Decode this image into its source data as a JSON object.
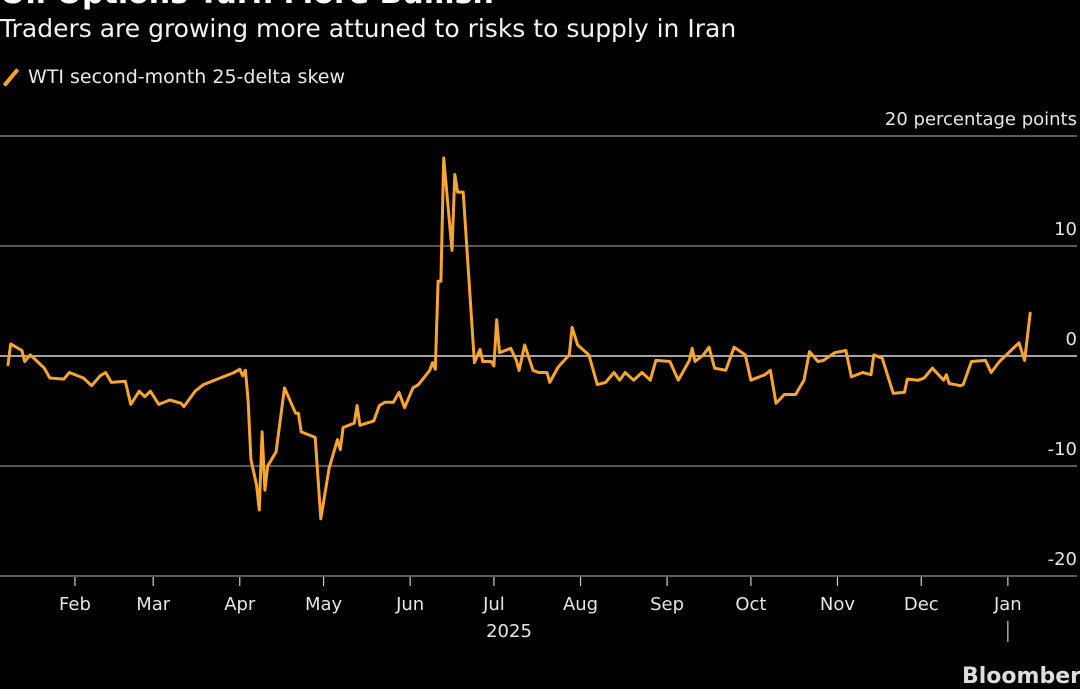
{
  "header": {
    "title": "Oil Options Turn More Bullish",
    "subtitle": "Traders are growing more attuned to risks to supply in Iran"
  },
  "source": "Bloomberg",
  "colors": {
    "series": "#f7a532",
    "background": "#000000",
    "grid": "#8c8c8c",
    "zero_line": "#d9d9d9"
  },
  "chart_data": {
    "type": "line",
    "title": "Oil Options Turn More Bullish",
    "subtitle": "Traders are growing more attuned to risks to supply in Iran",
    "legend_position": "top-left",
    "grid": true,
    "yaxis": {
      "unit_label": "20 percentage points",
      "ticks": [
        20,
        10,
        0,
        -10,
        -20
      ],
      "tick_labels": [
        "20 percentage points",
        "10",
        "0",
        "-10",
        "-20"
      ],
      "ylim": [
        -20,
        20
      ],
      "position": "right"
    },
    "xaxis": {
      "ticks": [
        "2025-02-01",
        "2025-03-01",
        "2025-04-01",
        "2025-05-01",
        "2025-06-01",
        "2025-07-01",
        "2025-08-01",
        "2025-09-01",
        "2025-10-01",
        "2025-11-01",
        "2025-12-01",
        "2026-01-01"
      ],
      "tick_labels": [
        "Feb",
        "Mar",
        "Apr",
        "May",
        "Jun",
        "Jul",
        "Aug",
        "Sep",
        "Oct",
        "Nov",
        "Dec",
        "Jan"
      ],
      "year_label": "2025"
    },
    "series": [
      {
        "name": "WTI second-month 25-delta skew",
        "points": [
          [
            "2025-01-08",
            -0.8
          ],
          [
            "2025-01-09",
            1.1
          ],
          [
            "2025-01-13",
            0.5
          ],
          [
            "2025-01-14",
            -0.5
          ],
          [
            "2025-01-16",
            0.1
          ],
          [
            "2025-01-21",
            -1.1
          ],
          [
            "2025-01-23",
            -2.0
          ],
          [
            "2025-01-28",
            -2.1
          ],
          [
            "2025-01-30",
            -1.5
          ],
          [
            "2025-02-04",
            -2.0
          ],
          [
            "2025-02-07",
            -2.7
          ],
          [
            "2025-02-10",
            -1.8
          ],
          [
            "2025-02-12",
            -1.5
          ],
          [
            "2025-02-14",
            -2.4
          ],
          [
            "2025-02-19",
            -2.3
          ],
          [
            "2025-02-21",
            -4.4
          ],
          [
            "2025-02-24",
            -3.2
          ],
          [
            "2025-02-26",
            -3.7
          ],
          [
            "2025-02-28",
            -3.2
          ],
          [
            "2025-03-03",
            -4.4
          ],
          [
            "2025-03-07",
            -4.0
          ],
          [
            "2025-03-11",
            -4.3
          ],
          [
            "2025-03-12",
            -4.6
          ],
          [
            "2025-03-16",
            -3.2
          ],
          [
            "2025-03-19",
            -2.6
          ],
          [
            "2025-03-25",
            -2.0
          ],
          [
            "2025-03-30",
            -1.5
          ],
          [
            "2025-04-01",
            -1.2
          ],
          [
            "2025-04-02",
            -1.8
          ],
          [
            "2025-04-03",
            -1.3
          ],
          [
            "2025-04-04",
            -4.0
          ],
          [
            "2025-04-05",
            -9.4
          ],
          [
            "2025-04-07",
            -11.7
          ],
          [
            "2025-04-08",
            -14.0
          ],
          [
            "2025-04-09",
            -6.9
          ],
          [
            "2025-04-10",
            -12.2
          ],
          [
            "2025-04-11",
            -10.0
          ],
          [
            "2025-04-14",
            -8.7
          ],
          [
            "2025-04-17",
            -2.9
          ],
          [
            "2025-04-21",
            -5.2
          ],
          [
            "2025-04-22",
            -5.2
          ],
          [
            "2025-04-23",
            -6.9
          ],
          [
            "2025-04-28",
            -7.4
          ],
          [
            "2025-04-30",
            -14.8
          ],
          [
            "2025-05-03",
            -10.2
          ],
          [
            "2025-05-06",
            -7.6
          ],
          [
            "2025-05-07",
            -8.5
          ],
          [
            "2025-05-08",
            -6.5
          ],
          [
            "2025-05-12",
            -6.1
          ],
          [
            "2025-05-13",
            -4.5
          ],
          [
            "2025-05-14",
            -6.3
          ],
          [
            "2025-05-19",
            -5.9
          ],
          [
            "2025-05-21",
            -4.5
          ],
          [
            "2025-05-23",
            -4.2
          ],
          [
            "2025-05-26",
            -4.2
          ],
          [
            "2025-05-28",
            -3.3
          ],
          [
            "2025-05-30",
            -4.7
          ],
          [
            "2025-06-02",
            -2.9
          ],
          [
            "2025-06-04",
            -2.6
          ],
          [
            "2025-06-08",
            -1.3
          ],
          [
            "2025-06-09",
            -0.6
          ],
          [
            "2025-06-10",
            -1.2
          ],
          [
            "2025-06-11",
            6.8
          ],
          [
            "2025-06-12",
            6.8
          ],
          [
            "2025-06-13",
            18.0
          ],
          [
            "2025-06-16",
            9.6
          ],
          [
            "2025-06-17",
            16.5
          ],
          [
            "2025-06-18",
            14.9
          ],
          [
            "2025-06-20",
            14.9
          ],
          [
            "2025-06-24",
            -0.6
          ],
          [
            "2025-06-26",
            0.6
          ],
          [
            "2025-06-27",
            -0.5
          ],
          [
            "2025-06-30",
            -0.5
          ],
          [
            "2025-07-01",
            -0.9
          ],
          [
            "2025-07-02",
            3.3
          ],
          [
            "2025-07-03",
            0.3
          ],
          [
            "2025-07-07",
            0.7
          ],
          [
            "2025-07-09",
            -0.4
          ],
          [
            "2025-07-10",
            -1.3
          ],
          [
            "2025-07-12",
            1.0
          ],
          [
            "2025-07-15",
            -1.3
          ],
          [
            "2025-07-17",
            -1.5
          ],
          [
            "2025-07-20",
            -1.5
          ],
          [
            "2025-07-21",
            -2.4
          ],
          [
            "2025-07-24",
            -1.0
          ],
          [
            "2025-07-28",
            0.1
          ],
          [
            "2025-07-29",
            2.6
          ],
          [
            "2025-07-31",
            1.0
          ],
          [
            "2025-08-04",
            0.1
          ],
          [
            "2025-08-07",
            -2.6
          ],
          [
            "2025-08-10",
            -2.4
          ],
          [
            "2025-08-13",
            -1.5
          ],
          [
            "2025-08-15",
            -2.2
          ],
          [
            "2025-08-17",
            -1.5
          ],
          [
            "2025-08-20",
            -2.2
          ],
          [
            "2025-08-23",
            -1.5
          ],
          [
            "2025-08-26",
            -2.2
          ],
          [
            "2025-08-28",
            -0.4
          ],
          [
            "2025-09-02",
            -0.5
          ],
          [
            "2025-09-05",
            -2.2
          ],
          [
            "2025-09-09",
            -0.4
          ],
          [
            "2025-09-10",
            0.7
          ],
          [
            "2025-09-11",
            -0.5
          ],
          [
            "2025-09-14",
            0.1
          ],
          [
            "2025-09-16",
            0.8
          ],
          [
            "2025-09-18",
            -1.1
          ],
          [
            "2025-09-22",
            -1.3
          ],
          [
            "2025-09-25",
            0.8
          ],
          [
            "2025-09-29",
            0.1
          ],
          [
            "2025-10-01",
            -2.2
          ],
          [
            "2025-10-06",
            -1.7
          ],
          [
            "2025-10-08",
            -1.3
          ],
          [
            "2025-10-10",
            -4.3
          ],
          [
            "2025-10-13",
            -3.5
          ],
          [
            "2025-10-17",
            -3.5
          ],
          [
            "2025-10-20",
            -2.2
          ],
          [
            "2025-10-22",
            0.4
          ],
          [
            "2025-10-25",
            -0.5
          ],
          [
            "2025-10-27",
            -0.4
          ],
          [
            "2025-10-31",
            0.3
          ],
          [
            "2025-11-04",
            0.5
          ],
          [
            "2025-11-06",
            -1.9
          ],
          [
            "2025-11-10",
            -1.5
          ],
          [
            "2025-11-13",
            -1.7
          ],
          [
            "2025-11-14",
            0.1
          ],
          [
            "2025-11-17",
            -0.2
          ],
          [
            "2025-11-21",
            -3.4
          ],
          [
            "2025-11-25",
            -3.3
          ],
          [
            "2025-11-26",
            -2.1
          ],
          [
            "2025-11-30",
            -2.2
          ],
          [
            "2025-12-02",
            -2.0
          ],
          [
            "2025-12-05",
            -1.1
          ],
          [
            "2025-12-09",
            -2.2
          ],
          [
            "2025-12-10",
            -1.7
          ],
          [
            "2025-12-11",
            -2.5
          ],
          [
            "2025-12-15",
            -2.7
          ],
          [
            "2025-12-16",
            -2.6
          ],
          [
            "2025-12-19",
            -0.5
          ],
          [
            "2025-12-24",
            -0.4
          ],
          [
            "2025-12-26",
            -1.5
          ],
          [
            "2025-12-29",
            -0.5
          ],
          [
            "2026-01-05",
            1.2
          ],
          [
            "2026-01-07",
            -0.4
          ],
          [
            "2026-01-09",
            3.9
          ]
        ]
      }
    ]
  }
}
